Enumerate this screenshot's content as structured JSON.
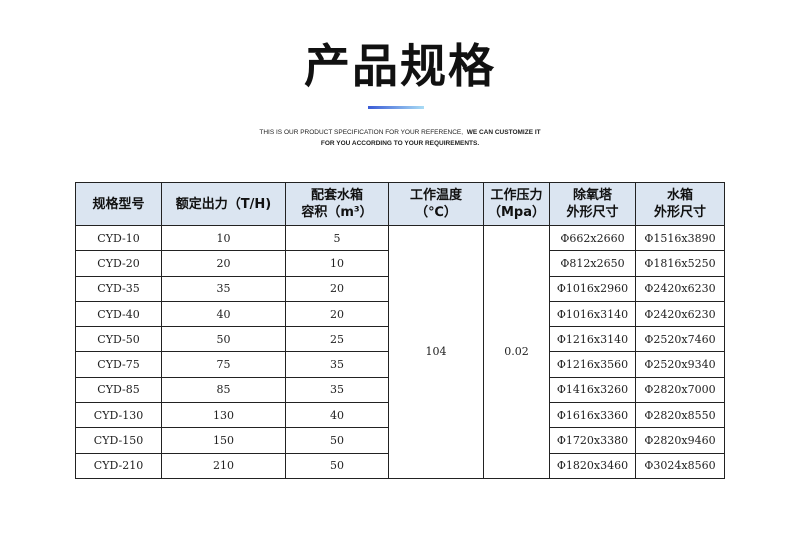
{
  "title": "产品规格",
  "subtitle": {
    "line1a": "THIS IS OUR PRODUCT SPECIFICATION FOR YOUR REFERENCE,",
    "line1b": "WE CAN CUSTOMIZE IT",
    "line2": "FOR YOU ACCORDING TO YOUR REQUIREMENTS."
  },
  "headers": [
    [
      "规格型号"
    ],
    [
      "额定出力（T/H)"
    ],
    [
      "配套水箱",
      "容积（m³）"
    ],
    [
      "工作温度",
      "（℃）"
    ],
    [
      "工作压力",
      "（Mpa）"
    ],
    [
      "除氧塔",
      "外形尺寸"
    ],
    [
      "水箱",
      "外形尺寸"
    ]
  ],
  "temperature": "104",
  "pressure": "0.02",
  "rows": [
    [
      "CYD-10",
      "10",
      "5",
      "Φ662x2660",
      "Φ1516x3890"
    ],
    [
      "CYD-20",
      "20",
      "10",
      "Φ812x2650",
      "Φ1816x5250"
    ],
    [
      "CYD-35",
      "35",
      "20",
      "Φ1016x2960",
      "Φ2420x6230"
    ],
    [
      "CYD-40",
      "40",
      "20",
      "Φ1016x3140",
      "Φ2420x6230"
    ],
    [
      "CYD-50",
      "50",
      "25",
      "Φ1216x3140",
      "Φ2520x7460"
    ],
    [
      "CYD-75",
      "75",
      "35",
      "Φ1216x3560",
      "Φ2520x9340"
    ],
    [
      "CYD-85",
      "85",
      "35",
      "Φ1416x3260",
      "Φ2820x7000"
    ],
    [
      "CYD-130",
      "130",
      "40",
      "Φ1616x3360",
      "Φ2820x8550"
    ],
    [
      "CYD-150",
      "150",
      "50",
      "Φ1720x3380",
      "Φ2820x9460"
    ],
    [
      "CYD-210",
      "210",
      "50",
      "Φ1820x3460",
      "Φ3024x8560"
    ]
  ]
}
